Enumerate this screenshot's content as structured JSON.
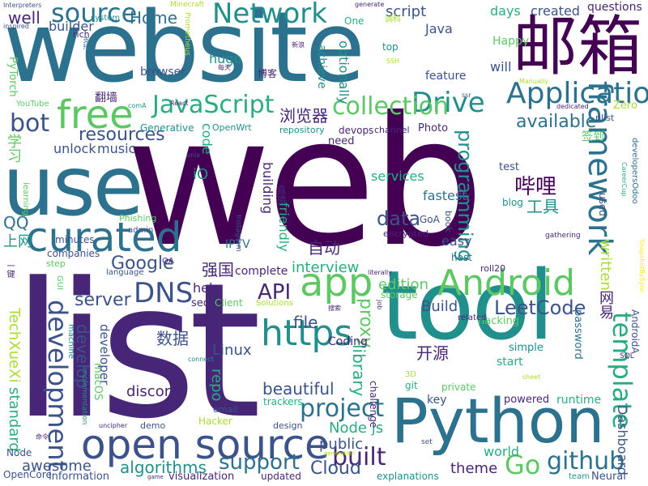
{
  "colors": {
    "background": "#ffffff",
    "palette": [
      "#440154",
      "#482677",
      "#3b528b",
      "#2c728e",
      "#21908d",
      "#27ad81",
      "#5dc863",
      "#aadc32",
      "#fde725"
    ]
  },
  "words": [
    {
      "text": "web",
      "color": "#440154"
    },
    {
      "text": "website",
      "color": "#2c728e"
    },
    {
      "text": "list",
      "color": "#482677"
    },
    {
      "text": "tool",
      "color": "#21908d"
    },
    {
      "text": "Python",
      "color": "#2c728e"
    },
    {
      "text": "use",
      "color": "#2c728e"
    },
    {
      "text": "邮箱",
      "color": "#440154"
    },
    {
      "text": "open source",
      "color": "#3b528b"
    },
    {
      "text": "app",
      "color": "#5dc863"
    },
    {
      "text": "Android",
      "color": "#5dc863"
    },
    {
      "text": "free",
      "color": "#5dc863"
    },
    {
      "text": "curated",
      "color": "#2c728e"
    },
    {
      "text": "https",
      "color": "#21908d"
    },
    {
      "text": "framework",
      "color": "#2c728e"
    },
    {
      "text": "Application",
      "color": "#2c728e"
    },
    {
      "text": "source",
      "color": "#2c728e"
    },
    {
      "text": "Network",
      "color": "#21908d"
    },
    {
      "text": "Drive",
      "color": "#21908d"
    },
    {
      "text": "JavaScript",
      "color": "#27ad81"
    },
    {
      "text": "collection",
      "color": "#5dc863"
    },
    {
      "text": "bot",
      "color": "#3b528b"
    },
    {
      "text": "DNS",
      "color": "#3b528b"
    },
    {
      "text": "development",
      "color": "#3b528b"
    },
    {
      "text": "template",
      "color": "#27ad81"
    },
    {
      "text": "project",
      "color": "#2c728e"
    },
    {
      "text": "built",
      "color": "#482677"
    },
    {
      "text": "Go",
      "color": "#5dc863"
    },
    {
      "text": "github",
      "color": "#2c728e"
    },
    {
      "text": "support",
      "color": "#2c728e"
    },
    {
      "text": "Google",
      "color": "#3b528b"
    },
    {
      "text": "available",
      "color": "#2c728e"
    },
    {
      "text": "resources",
      "color": "#3b528b"
    },
    {
      "text": "programming",
      "color": "#21908d"
    },
    {
      "text": "data",
      "color": "#3b528b"
    },
    {
      "text": "LeetCode",
      "color": "#3b528b"
    },
    {
      "text": "server",
      "color": "#3b528b"
    },
    {
      "text": "API",
      "color": "#482677"
    },
    {
      "text": "Linux",
      "color": "#3b528b"
    },
    {
      "text": "library",
      "color": "#27ad81"
    },
    {
      "text": "beautiful",
      "color": "#3b528b"
    },
    {
      "text": "algorithms",
      "color": "#21908d"
    },
    {
      "text": "awesome",
      "color": "#3b528b"
    },
    {
      "text": "public",
      "color": "#3b528b"
    },
    {
      "text": "Cloud",
      "color": "#3b528b"
    },
    {
      "text": "theme",
      "color": "#482677"
    },
    {
      "text": "proxy",
      "color": "#5dc863"
    },
    {
      "text": "file",
      "color": "#3b528b"
    },
    {
      "text": "Build",
      "color": "#3b528b"
    },
    {
      "text": "edition",
      "color": "#5dc863"
    },
    {
      "text": "Node js",
      "color": "#27ad81"
    },
    {
      "text": "repo",
      "color": "#27ad81"
    },
    {
      "text": "develop",
      "color": "#3b528b"
    },
    {
      "text": "discord",
      "color": "#482677"
    },
    {
      "text": "Dashboard",
      "color": "#3b528b"
    },
    {
      "text": "standard",
      "color": "#27ad81"
    },
    {
      "text": "TechXueXi",
      "color": "#aadc32"
    },
    {
      "text": "浏览器",
      "color": "#482677"
    },
    {
      "text": "自动",
      "color": "#482677"
    },
    {
      "text": "数据",
      "color": "#3b528b"
    },
    {
      "text": "强国",
      "color": "#482677"
    },
    {
      "text": "开源",
      "color": "#482677"
    },
    {
      "text": "网易",
      "color": "#482677"
    },
    {
      "text": "哔哩",
      "color": "#440154"
    },
    {
      "text": "工具",
      "color": "#21908d"
    },
    {
      "text": "学习",
      "color": "#5dc863"
    },
    {
      "text": "上网",
      "color": "#21908d"
    },
    {
      "text": "QQ",
      "color": "#2c728e"
    },
    {
      "text": "script",
      "color": "#3b528b"
    },
    {
      "text": "Home",
      "color": "#2c728e"
    },
    {
      "text": "well",
      "color": "#482677"
    },
    {
      "text": "builder",
      "color": "#3b528b"
    },
    {
      "text": "Java",
      "color": "#3b528b"
    },
    {
      "text": "days",
      "color": "#27ad81"
    },
    {
      "text": "created",
      "color": "#3b528b"
    },
    {
      "text": "questions",
      "color": "#482677"
    },
    {
      "text": "will",
      "color": "#3b528b"
    },
    {
      "text": "interview",
      "color": "#27ad81"
    },
    {
      "text": "services",
      "color": "#27ad81"
    },
    {
      "text": "fastest",
      "color": "#2c728e"
    },
    {
      "text": "easy",
      "color": "#3b528b"
    },
    {
      "text": "code",
      "color": "#27ad81"
    },
    {
      "text": "iO",
      "color": "#21908d"
    },
    {
      "text": "friendly",
      "color": "#27ad81"
    },
    {
      "text": "building",
      "color": "#482677"
    },
    {
      "text": "help",
      "color": "#482677"
    },
    {
      "text": "complete",
      "color": "#482677"
    },
    {
      "text": "music",
      "color": "#3b528b"
    },
    {
      "text": "unlock",
      "color": "#3b528b"
    },
    {
      "text": "browser",
      "color": "#3b528b"
    },
    {
      "text": "hugo",
      "color": "#21908d"
    },
    {
      "text": "optionally",
      "color": "#21908d"
    },
    {
      "text": "achieve",
      "color": "#21908d"
    },
    {
      "text": "feature",
      "color": "#3b528b"
    },
    {
      "text": "Happy",
      "color": "#5dc863"
    },
    {
      "text": "top",
      "color": "#21908d"
    },
    {
      "text": "One",
      "color": "#27ad81"
    },
    {
      "text": "secret",
      "color": "#482677"
    },
    {
      "text": "Solutions",
      "color": "#aadc32"
    },
    {
      "text": "storage",
      "color": "#5dc863"
    },
    {
      "text": "Coding",
      "color": "#482677"
    },
    {
      "text": "macOS",
      "color": "#5dc863"
    },
    {
      "text": "developer",
      "color": "#3b528b"
    },
    {
      "text": "minutes",
      "color": "#3b528b"
    },
    {
      "text": "companies",
      "color": "#3b528b"
    },
    {
      "text": "IPTV",
      "color": "#2c728e"
    },
    {
      "text": "Photo",
      "color": "#482677"
    },
    {
      "text": "devops",
      "color": "#482677"
    },
    {
      "text": "repository",
      "color": "#21908d"
    },
    {
      "text": "channel",
      "color": "#482677"
    },
    {
      "text": "need",
      "color": "#482677"
    },
    {
      "text": "written",
      "color": "#aadc32"
    },
    {
      "text": "used",
      "color": "#3b528b"
    },
    {
      "text": "test",
      "color": "#3b528b"
    },
    {
      "text": "blog",
      "color": "#21908d"
    },
    {
      "text": "plist",
      "color": "#3b528b"
    },
    {
      "text": "Zero",
      "color": "#aadc32"
    },
    {
      "text": "签到",
      "color": "#5dc863"
    },
    {
      "text": "翻墙",
      "color": "#482677"
    },
    {
      "text": "博客",
      "color": "#482677"
    },
    {
      "text": "Generative",
      "color": "#21908d"
    },
    {
      "text": "OpenWrt",
      "color": "#21908d"
    },
    {
      "text": "rich",
      "color": "#482677"
    },
    {
      "text": "system",
      "color": "#21908d"
    },
    {
      "text": "Minecraft",
      "color": "#aadc32"
    },
    {
      "text": "Prometheus",
      "color": "#aadc32"
    },
    {
      "text": "PyTorch",
      "color": "#5dc863"
    },
    {
      "text": "YouTube",
      "color": "#5dc863"
    },
    {
      "text": "learning",
      "color": "#5dc863"
    },
    {
      "text": "Phishing",
      "color": "#5dc863"
    },
    {
      "text": "admin",
      "color": "#3b528b"
    },
    {
      "text": "language",
      "color": "#3b528b"
    },
    {
      "text": "QA",
      "color": "#482677"
    },
    {
      "text": "step",
      "color": "#5dc863"
    },
    {
      "text": "GUI",
      "color": "#5dc863"
    },
    {
      "text": "Instagram",
      "color": "#3b528b"
    },
    {
      "text": "Client",
      "color": "#5dc863"
    },
    {
      "text": "machine",
      "color": "#21908d"
    },
    {
      "text": "implementation",
      "color": "#21908d"
    },
    {
      "text": "Node",
      "color": "#3b528b"
    },
    {
      "text": "OpenCore",
      "color": "#3b528b"
    },
    {
      "text": "information",
      "color": "#3b528b"
    },
    {
      "text": "visualization",
      "color": "#482677"
    },
    {
      "text": "updated",
      "color": "#482677"
    },
    {
      "text": "explanations",
      "color": "#21908d"
    },
    {
      "text": "world",
      "color": "#27ad81"
    },
    {
      "text": "Neural",
      "color": "#3b528b"
    },
    {
      "text": "team",
      "color": "#21908d"
    },
    {
      "text": "runtime",
      "color": "#27ad81"
    },
    {
      "text": "powered",
      "color": "#482677"
    },
    {
      "text": "key",
      "color": "#3b528b"
    },
    {
      "text": "start",
      "color": "#27ad81"
    },
    {
      "text": "simple",
      "color": "#21908d"
    },
    {
      "text": "private",
      "color": "#5dc863"
    },
    {
      "text": "git",
      "color": "#27ad81"
    },
    {
      "text": "3D",
      "color": "#aadc32"
    },
    {
      "text": "hacking",
      "color": "#5dc863"
    },
    {
      "text": "password",
      "color": "#2c728e"
    },
    {
      "text": "AndroidA",
      "color": "#3b528b"
    },
    {
      "text": "challenge",
      "color": "#482677"
    },
    {
      "text": "email",
      "color": "#3b528b"
    },
    {
      "text": "Hacker",
      "color": "#aadc32"
    },
    {
      "text": "demo",
      "color": "#3b528b"
    },
    {
      "text": "trackers",
      "color": "#27ad81"
    },
    {
      "text": "design",
      "color": "#3b528b"
    },
    {
      "text": "encrypted",
      "color": "#482677"
    },
    {
      "text": "host",
      "color": "#2c728e"
    },
    {
      "text": "GoA",
      "color": "#3b528b"
    },
    {
      "text": "book",
      "color": "#3b528b"
    },
    {
      "text": "gathering",
      "color": "#482677"
    },
    {
      "text": "roll20",
      "color": "#482677"
    },
    {
      "text": "related",
      "color": "#482677"
    },
    {
      "text": "SQL",
      "color": "#482677"
    },
    {
      "text": "CareerCup",
      "color": "#27ad81"
    },
    {
      "text": "developersOdoo",
      "color": "#2c728e"
    },
    {
      "text": "SnapshotBySync",
      "color": "#fde725"
    },
    {
      "text": "dedicated",
      "color": "#482677"
    },
    {
      "text": "Manually",
      "color": "#aadc32"
    },
    {
      "text": "ssr",
      "color": "#3b528b"
    },
    {
      "text": "SSH",
      "color": "#aadc32"
    },
    {
      "text": "generate",
      "color": "#482677"
    },
    {
      "text": "调科",
      "color": "#aadc32"
    },
    {
      "text": "支持",
      "color": "#2c728e"
    },
    {
      "text": "Interpreters",
      "color": "#3b528b"
    },
    {
      "text": "inspired",
      "color": "#3b528b"
    },
    {
      "text": "每天",
      "color": "#482677"
    },
    {
      "text": "新浪",
      "color": "#482677"
    },
    {
      "text": "comA",
      "color": "#21908d"
    },
    {
      "text": "React",
      "color": "#482677"
    },
    {
      "text": "unix",
      "color": "#3b528b"
    },
    {
      "text": "直播",
      "color": "#482677"
    },
    {
      "text": "一键",
      "color": "#482677"
    },
    {
      "text": "命令",
      "color": "#482677"
    },
    {
      "text": "搜索",
      "color": "#482677"
    },
    {
      "text": "uncipher",
      "color": "#482677"
    },
    {
      "text": "connect",
      "color": "#21908d"
    },
    {
      "text": "sheet",
      "color": "#aadc32"
    },
    {
      "text": "literally",
      "color": "#482677"
    },
    {
      "text": "job",
      "color": "#482677"
    },
    {
      "text": "generation",
      "color": "#aadc32"
    },
    {
      "text": "set",
      "color": "#3b528b"
    },
    {
      "text": "game",
      "color": "#482677"
    }
  ]
}
